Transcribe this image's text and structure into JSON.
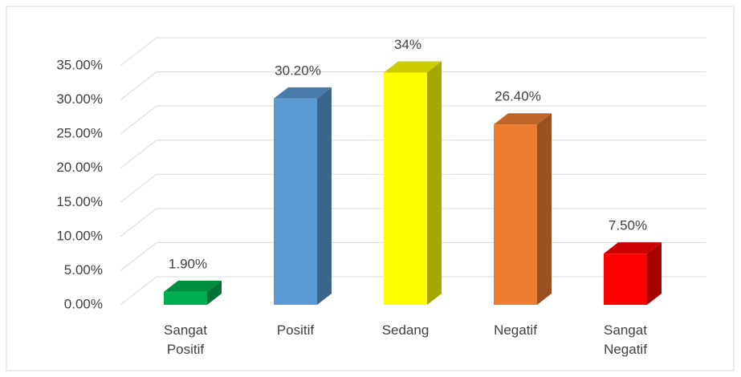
{
  "chart_data": {
    "type": "bar3d",
    "categories": [
      "Sangat Positif",
      "Positif",
      "Sedang",
      "Negatif",
      "Sangat Negatif"
    ],
    "values": [
      1.9,
      30.2,
      34,
      26.4,
      7.5
    ],
    "value_labels": [
      "1.90%",
      "30.20%",
      "34%",
      "26.40%",
      "7.50%"
    ],
    "colors": [
      "#00b050",
      "#5b9bd5",
      "#ffff00",
      "#ed7d31",
      "#ff0000"
    ],
    "ylim": [
      0,
      35
    ],
    "yticks": [
      {
        "value": 0,
        "label": "0.00%"
      },
      {
        "value": 5,
        "label": "5.00%"
      },
      {
        "value": 10,
        "label": "10.00%"
      },
      {
        "value": 15,
        "label": "15.00%"
      },
      {
        "value": 20,
        "label": "20.00%"
      },
      {
        "value": 25,
        "label": "25.00%"
      },
      {
        "value": 30,
        "label": "30.00%"
      },
      {
        "value": 35,
        "label": "35.00%"
      }
    ],
    "grid": true
  }
}
